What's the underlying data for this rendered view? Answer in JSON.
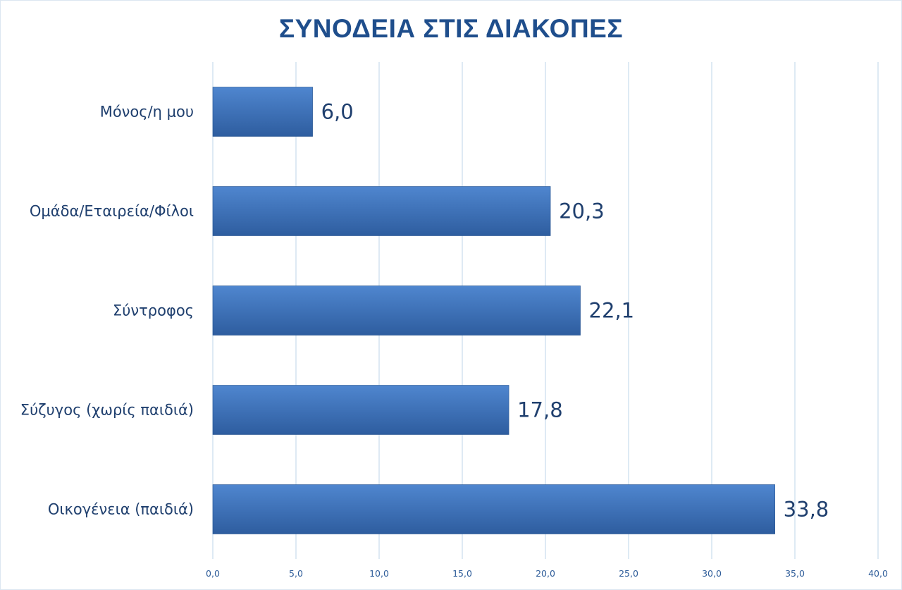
{
  "chart_data": {
    "type": "bar",
    "orientation": "horizontal",
    "title": "ΣΥΝΟΔΕΙΑ ΣΤΙΣ ΔΙΑΚΟΠΕΣ",
    "categories": [
      "Μόνος/η μου",
      "Ομάδα/Εταιρεία/Φίλοι",
      "Σύντροφος",
      "Σύζυγος (χωρίς παιδιά)",
      "Οικογένεια (παιδιά)"
    ],
    "values": [
      6.0,
      20.3,
      22.1,
      17.8,
      33.8
    ],
    "value_labels": [
      "6,0",
      "20,3",
      "22,1",
      "17,8",
      "33,8"
    ],
    "xlim": [
      0,
      40
    ],
    "x_ticks": [
      0,
      5,
      10,
      15,
      20,
      25,
      30,
      35,
      40
    ],
    "x_tick_labels": [
      "0,0",
      "5,0",
      "10,0",
      "15,0",
      "20,0",
      "25,0",
      "30,0",
      "35,0",
      "40,0"
    ],
    "xlabel": "",
    "ylabel": "",
    "grid": true,
    "legend": "none",
    "colors": {
      "bar_top": "#4f86cf",
      "bar_bottom": "#2e5d9f",
      "grid": "#d4e3f1",
      "text": "#1f3f6e",
      "title": "#1f4e8c"
    }
  }
}
